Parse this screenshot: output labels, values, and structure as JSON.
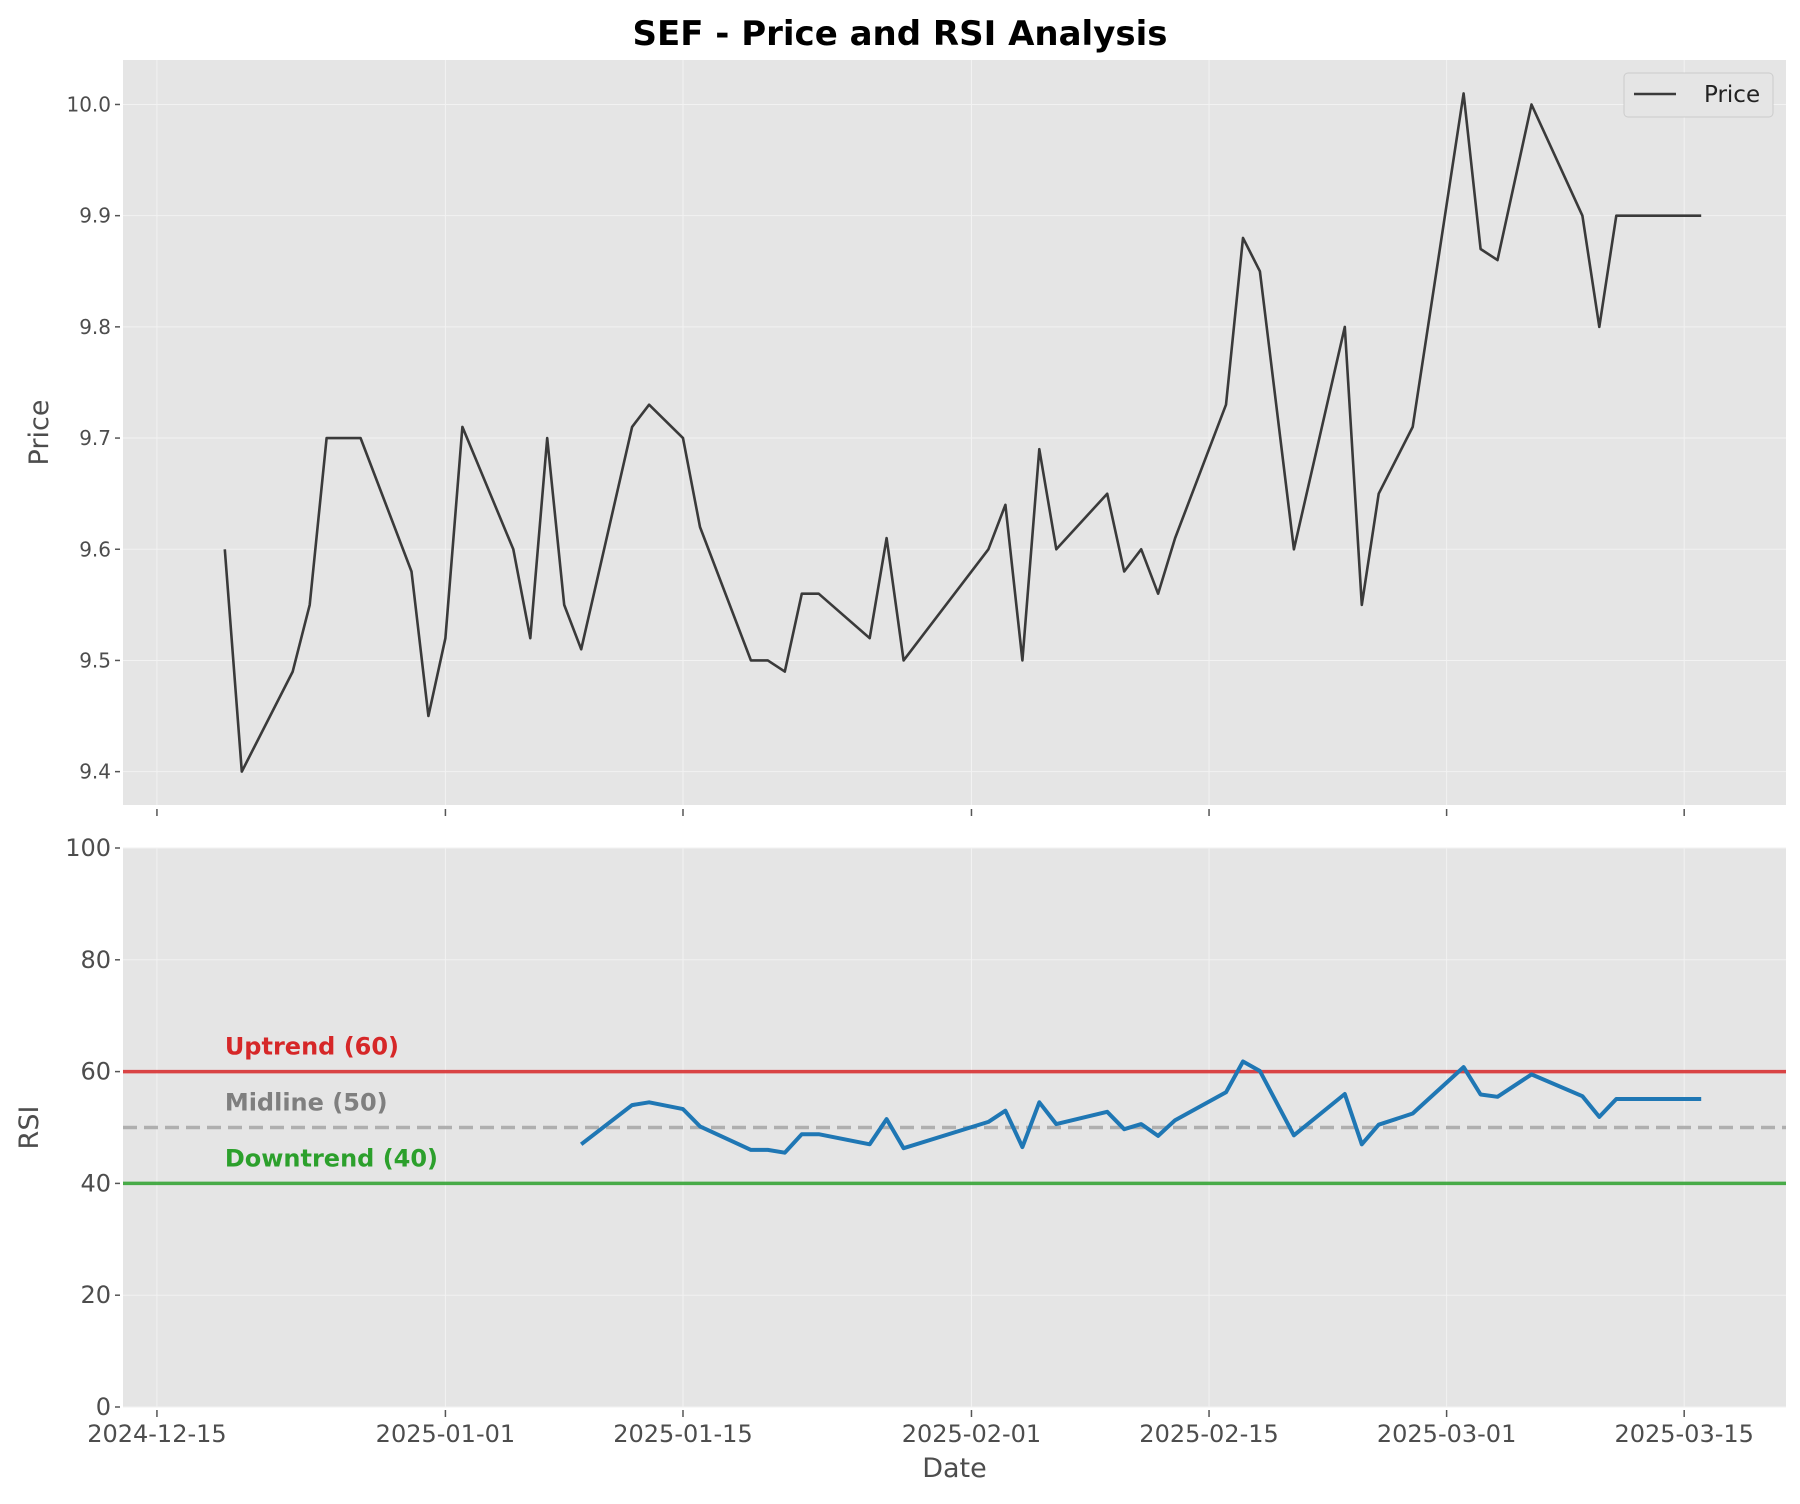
{
  "title": "SEF - Price and RSI Analysis",
  "colors": {
    "panel_bg": "#e5e5e5",
    "grid": "#f2f2f2",
    "price_line": "#3a3a3a",
    "rsi_line": "#1f77b4",
    "uptrend": "#d62728",
    "midline": "#a6a6a6",
    "downtrend": "#2ca02c",
    "tick_text": "#4d4d4d"
  },
  "chart_data": [
    {
      "type": "line",
      "panel": "price",
      "ylabel": "Price",
      "ylim": [
        9.37,
        10.04
      ],
      "yticks": [
        "9.4",
        "9.5",
        "9.6",
        "9.7",
        "9.8",
        "9.9",
        "10.0"
      ],
      "xlim": [
        "2024-12-13",
        "2025-03-21"
      ],
      "grid": true,
      "legend": {
        "placement": "top-right",
        "entries": [
          "Price"
        ]
      },
      "series": [
        {
          "name": "Price",
          "x": [
            "2024-12-19",
            "2024-12-20",
            "2024-12-23",
            "2024-12-24",
            "2024-12-25",
            "2024-12-27",
            "2024-12-30",
            "2024-12-31",
            "2025-01-01",
            "2025-01-02",
            "2025-01-05",
            "2025-01-06",
            "2025-01-07",
            "2025-01-08",
            "2025-01-09",
            "2025-01-12",
            "2025-01-13",
            "2025-01-15",
            "2025-01-16",
            "2025-01-19",
            "2025-01-20",
            "2025-01-21",
            "2025-01-22",
            "2025-01-23",
            "2025-01-26",
            "2025-01-27",
            "2025-01-28",
            "2025-02-02",
            "2025-02-03",
            "2025-02-04",
            "2025-02-05",
            "2025-02-06",
            "2025-02-09",
            "2025-02-10",
            "2025-02-11",
            "2025-02-12",
            "2025-02-13",
            "2025-02-16",
            "2025-02-17",
            "2025-02-18",
            "2025-02-20",
            "2025-02-23",
            "2025-02-24",
            "2025-02-25",
            "2025-02-27",
            "2025-03-02",
            "2025-03-03",
            "2025-03-04",
            "2025-03-06",
            "2025-03-09",
            "2025-03-10",
            "2025-03-11",
            "2025-03-13",
            "2025-03-16"
          ],
          "y": [
            9.6,
            9.4,
            9.49,
            9.55,
            9.7,
            9.7,
            9.58,
            9.45,
            9.52,
            9.71,
            9.6,
            9.52,
            9.7,
            9.55,
            9.51,
            9.71,
            9.73,
            9.7,
            9.62,
            9.5,
            9.5,
            9.49,
            9.56,
            9.56,
            9.52,
            9.61,
            9.5,
            9.6,
            9.64,
            9.5,
            9.69,
            9.6,
            9.65,
            9.58,
            9.6,
            9.56,
            9.61,
            9.73,
            9.88,
            9.85,
            9.6,
            9.8,
            9.55,
            9.65,
            9.71,
            10.01,
            9.87,
            9.86,
            10.0,
            9.9,
            9.8,
            9.9,
            9.9,
            9.9
          ]
        }
      ]
    },
    {
      "type": "line",
      "panel": "rsi",
      "xlabel": "Date",
      "ylabel": "RSI",
      "ylim": [
        0,
        100
      ],
      "yticks": [
        "0",
        "20",
        "40",
        "60",
        "80",
        "100"
      ],
      "xlim": [
        "2024-12-13",
        "2025-03-21"
      ],
      "xticks": [
        {
          "date": "2024-12-15",
          "label": "2024-12-15"
        },
        {
          "date": "2025-01-01",
          "label": "2025-01-01"
        },
        {
          "date": "2025-01-15",
          "label": "2025-01-15"
        },
        {
          "date": "2025-02-01",
          "label": "2025-02-01"
        },
        {
          "date": "2025-02-15",
          "label": "2025-02-15"
        },
        {
          "date": "2025-03-01",
          "label": "2025-03-01"
        },
        {
          "date": "2025-03-15",
          "label": "2025-03-15"
        }
      ],
      "grid": true,
      "reference_lines": [
        {
          "value": 60,
          "label": "Uptrend (60)",
          "style": "solid",
          "color": "#d62728"
        },
        {
          "value": 50,
          "label": "Midline (50)",
          "style": "dashed",
          "color": "#a6a6a6"
        },
        {
          "value": 40,
          "label": "Downtrend (40)",
          "style": "solid",
          "color": "#2ca02c"
        }
      ],
      "series": [
        {
          "x": [
            "2025-01-09",
            "2025-01-12",
            "2025-01-13",
            "2025-01-15",
            "2025-01-16",
            "2025-01-19",
            "2025-01-20",
            "2025-01-21",
            "2025-01-22",
            "2025-01-23",
            "2025-01-26",
            "2025-01-27",
            "2025-01-28",
            "2025-02-02",
            "2025-02-03",
            "2025-02-04",
            "2025-02-05",
            "2025-02-06",
            "2025-02-09",
            "2025-02-10",
            "2025-02-11",
            "2025-02-12",
            "2025-02-13",
            "2025-02-16",
            "2025-02-17",
            "2025-02-18",
            "2025-02-20",
            "2025-02-23",
            "2025-02-24",
            "2025-02-25",
            "2025-02-27",
            "2025-03-02",
            "2025-03-03",
            "2025-03-04",
            "2025-03-06",
            "2025-03-09",
            "2025-03-10",
            "2025-03-11",
            "2025-03-13",
            "2025-03-16"
          ],
          "y": [
            47.0,
            54.0,
            54.5,
            53.3,
            50.2,
            46.0,
            46.0,
            45.5,
            48.8,
            48.8,
            47.0,
            51.5,
            46.3,
            51.0,
            53.0,
            46.5,
            54.5,
            50.6,
            52.8,
            49.7,
            50.6,
            48.5,
            51.3,
            56.3,
            61.8,
            60.1,
            48.6,
            56.0,
            47.0,
            50.5,
            52.5,
            60.8,
            55.9,
            55.5,
            59.5,
            55.6,
            51.9,
            55.1,
            55.1,
            55.1
          ]
        }
      ]
    }
  ]
}
